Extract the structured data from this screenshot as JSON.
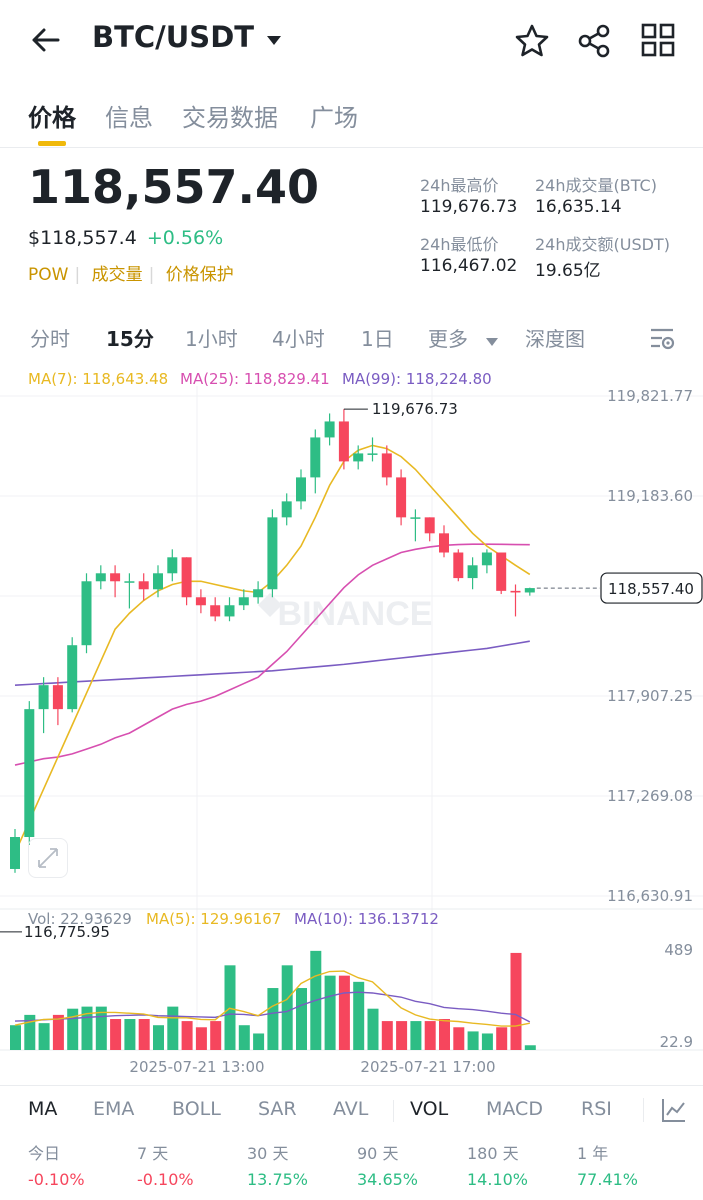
{
  "header": {
    "pair": "BTC/USDT",
    "icons": [
      "back-arrow-icon",
      "dropdown-caret-icon",
      "star-icon",
      "share-icon",
      "grid-icon"
    ]
  },
  "nav_tabs": [
    "价格",
    "信息",
    "交易数据",
    "广场"
  ],
  "price": {
    "last": "118,557.40",
    "usd": "$118,557.4",
    "change": "+0.56%",
    "tags": [
      "POW",
      "成交量",
      "价格保护"
    ]
  },
  "stats": {
    "high_label": "24h最高价",
    "high": "119,676.73",
    "low_label": "24h最低价",
    "low": "116,467.02",
    "vol_btc_label": "24h成交量(BTC)",
    "vol_btc": "16,635.14",
    "vol_usdt_label": "24h成交额(USDT)",
    "vol_usdt": "19.65亿"
  },
  "timeframes": [
    "分时",
    "15分",
    "1小时",
    "4小时",
    "1日",
    "更多",
    "深度图"
  ],
  "active_timeframe": "15分",
  "ma_legend": {
    "ma7": "MA(7): 118,643.48",
    "ma25": "MA(25): 118,829.41",
    "ma99": "MA(99): 118,224.80"
  },
  "vol_legend": {
    "vol": "Vol: 22.93629",
    "ma5": "MA(5): 129.96167",
    "ma10": "MA(10): 136.13712"
  },
  "watermark": "BINANCE",
  "indicators": [
    "MA",
    "EMA",
    "BOLL",
    "SAR",
    "AVL",
    "VOL",
    "MACD",
    "RSI"
  ],
  "active_indicators": [
    "MA",
    "VOL"
  ],
  "performance": [
    {
      "label": "今日",
      "value": "-0.10%"
    },
    {
      "label": "7 天",
      "value": "-0.10%"
    },
    {
      "label": "30 天",
      "value": "13.75%"
    },
    {
      "label": "90 天",
      "value": "34.65%"
    },
    {
      "label": "180 天",
      "value": "14.10%"
    },
    {
      "label": "1 年",
      "value": "77.41%"
    }
  ],
  "colors": {
    "up": "#2ebd85",
    "down": "#f6465d",
    "accent": "#f0b90b",
    "ma7": "#e8b923",
    "ma25": "#d74fb0",
    "ma99": "#7a5cc2"
  },
  "chart_data": {
    "type": "candlestick",
    "price_axis_labels": [
      "119,821.77",
      "119,183.60",
      "118,557.40",
      "117,907.25",
      "117,269.08",
      "116,630.91"
    ],
    "ylim": [
      116630.91,
      119821.77
    ],
    "max_label": "119,676.73",
    "min_label": "116,775.95",
    "current_price_label": "118,557.40",
    "time_labels": [
      "2025-07-21 13:00",
      "2025-07-21 17:00"
    ],
    "volume_axis_labels": [
      "489",
      "22.9"
    ],
    "volume_ylim": [
      22.9,
      489
    ],
    "candles": [
      {
        "o": 116800,
        "h": 117050,
        "l": 116775.95,
        "c": 117000,
        "v": 120
      },
      {
        "o": 117000,
        "h": 117850,
        "l": 116950,
        "c": 117800,
        "v": 170
      },
      {
        "o": 117800,
        "h": 118000,
        "l": 117650,
        "c": 117950,
        "v": 130
      },
      {
        "o": 117950,
        "h": 118000,
        "l": 117700,
        "c": 117800,
        "v": 170
      },
      {
        "o": 117800,
        "h": 118250,
        "l": 117780,
        "c": 118200,
        "v": 200
      },
      {
        "o": 118200,
        "h": 118650,
        "l": 118150,
        "c": 118600,
        "v": 210
      },
      {
        "o": 118600,
        "h": 118700,
        "l": 118550,
        "c": 118650,
        "v": 210
      },
      {
        "o": 118650,
        "h": 118700,
        "l": 118500,
        "c": 118600,
        "v": 150
      },
      {
        "o": 118600,
        "h": 118650,
        "l": 118430,
        "c": 118600,
        "v": 150
      },
      {
        "o": 118600,
        "h": 118650,
        "l": 118480,
        "c": 118550,
        "v": 150
      },
      {
        "o": 118550,
        "h": 118700,
        "l": 118500,
        "c": 118650,
        "v": 120
      },
      {
        "o": 118650,
        "h": 118800,
        "l": 118600,
        "c": 118750,
        "v": 210
      },
      {
        "o": 118750,
        "h": 118750,
        "l": 118450,
        "c": 118500,
        "v": 140
      },
      {
        "o": 118500,
        "h": 118550,
        "l": 118400,
        "c": 118450,
        "v": 110
      },
      {
        "o": 118450,
        "h": 118500,
        "l": 118350,
        "c": 118380,
        "v": 140
      },
      {
        "o": 118380,
        "h": 118500,
        "l": 118350,
        "c": 118450,
        "v": 410
      },
      {
        "o": 118450,
        "h": 118550,
        "l": 118420,
        "c": 118500,
        "v": 120
      },
      {
        "o": 118500,
        "h": 118600,
        "l": 118460,
        "c": 118550,
        "v": 80
      },
      {
        "o": 118550,
        "h": 119050,
        "l": 118500,
        "c": 119000,
        "v": 300
      },
      {
        "o": 119000,
        "h": 119150,
        "l": 118950,
        "c": 119100,
        "v": 410
      },
      {
        "o": 119100,
        "h": 119300,
        "l": 119050,
        "c": 119250,
        "v": 300
      },
      {
        "o": 119250,
        "h": 119550,
        "l": 119150,
        "c": 119500,
        "v": 480
      },
      {
        "o": 119500,
        "h": 119650,
        "l": 119450,
        "c": 119600,
        "v": 360
      },
      {
        "o": 119600,
        "h": 119676.73,
        "l": 119300,
        "c": 119350,
        "v": 360
      },
      {
        "o": 119350,
        "h": 119450,
        "l": 119300,
        "c": 119400,
        "v": 330
      },
      {
        "o": 119400,
        "h": 119500,
        "l": 119350,
        "c": 119400,
        "v": 200
      },
      {
        "o": 119400,
        "h": 119450,
        "l": 119200,
        "c": 119250,
        "v": 140
      },
      {
        "o": 119250,
        "h": 119300,
        "l": 118950,
        "c": 119000,
        "v": 140
      },
      {
        "o": 119000,
        "h": 119050,
        "l": 118850,
        "c": 119000,
        "v": 140
      },
      {
        "o": 119000,
        "h": 119000,
        "l": 118850,
        "c": 118900,
        "v": 140
      },
      {
        "o": 118900,
        "h": 118950,
        "l": 118750,
        "c": 118780,
        "v": 150
      },
      {
        "o": 118780,
        "h": 118800,
        "l": 118600,
        "c": 118620,
        "v": 110
      },
      {
        "o": 118620,
        "h": 118750,
        "l": 118550,
        "c": 118700,
        "v": 90
      },
      {
        "o": 118700,
        "h": 118800,
        "l": 118650,
        "c": 118780,
        "v": 80
      },
      {
        "o": 118780,
        "h": 118780,
        "l": 118520,
        "c": 118540,
        "v": 110
      },
      {
        "o": 118540,
        "h": 118580,
        "l": 118380,
        "c": 118530,
        "v": 470
      },
      {
        "o": 118530,
        "h": 118560,
        "l": 118510,
        "c": 118557.4,
        "v": 22.9
      }
    ],
    "ma7_series": [
      116900,
      117100,
      117300,
      117500,
      117700,
      117900,
      118100,
      118300,
      118400,
      118480,
      118540,
      118580,
      118600,
      118600,
      118580,
      118560,
      118540,
      118530,
      118600,
      118700,
      118820,
      119000,
      119200,
      119350,
      119420,
      119450,
      119430,
      119380,
      119300,
      119200,
      119100,
      119000,
      118900,
      118820,
      118760,
      118700,
      118643
    ],
    "ma25_series": [
      117450,
      117470,
      117490,
      117500,
      117520,
      117550,
      117580,
      117620,
      117650,
      117700,
      117750,
      117800,
      117830,
      117850,
      117880,
      117920,
      117960,
      118000,
      118080,
      118160,
      118260,
      118360,
      118460,
      118560,
      118640,
      118700,
      118740,
      118780,
      118800,
      118815,
      118825,
      118830,
      118832,
      118832,
      118831,
      118830,
      118829
    ],
    "ma99_series": [
      117950,
      117955,
      117960,
      117965,
      117970,
      117975,
      117980,
      117985,
      117990,
      117995,
      118000,
      118005,
      118010,
      118015,
      118020,
      118025,
      118030,
      118035,
      118040,
      118048,
      118056,
      118064,
      118072,
      118080,
      118090,
      118100,
      118110,
      118120,
      118130,
      118140,
      118150,
      118160,
      118170,
      118180,
      118195,
      118210,
      118225
    ],
    "vol_ma5_series": [
      120,
      135,
      148,
      150,
      160,
      176,
      182,
      182,
      178,
      174,
      158,
      156,
      156,
      148,
      146,
      202,
      186,
      166,
      212,
      244,
      322,
      358,
      380,
      382,
      350,
      330,
      266,
      204,
      170,
      150,
      142,
      138,
      130,
      124,
      116,
      116,
      130
    ],
    "vol_ma10_series": [
      140,
      142,
      146,
      150,
      152,
      158,
      162,
      166,
      168,
      170,
      166,
      164,
      162,
      160,
      158,
      174,
      172,
      166,
      178,
      186,
      216,
      240,
      260,
      276,
      280,
      276,
      266,
      256,
      236,
      224,
      206,
      200,
      196,
      188,
      178,
      172,
      136
    ]
  }
}
